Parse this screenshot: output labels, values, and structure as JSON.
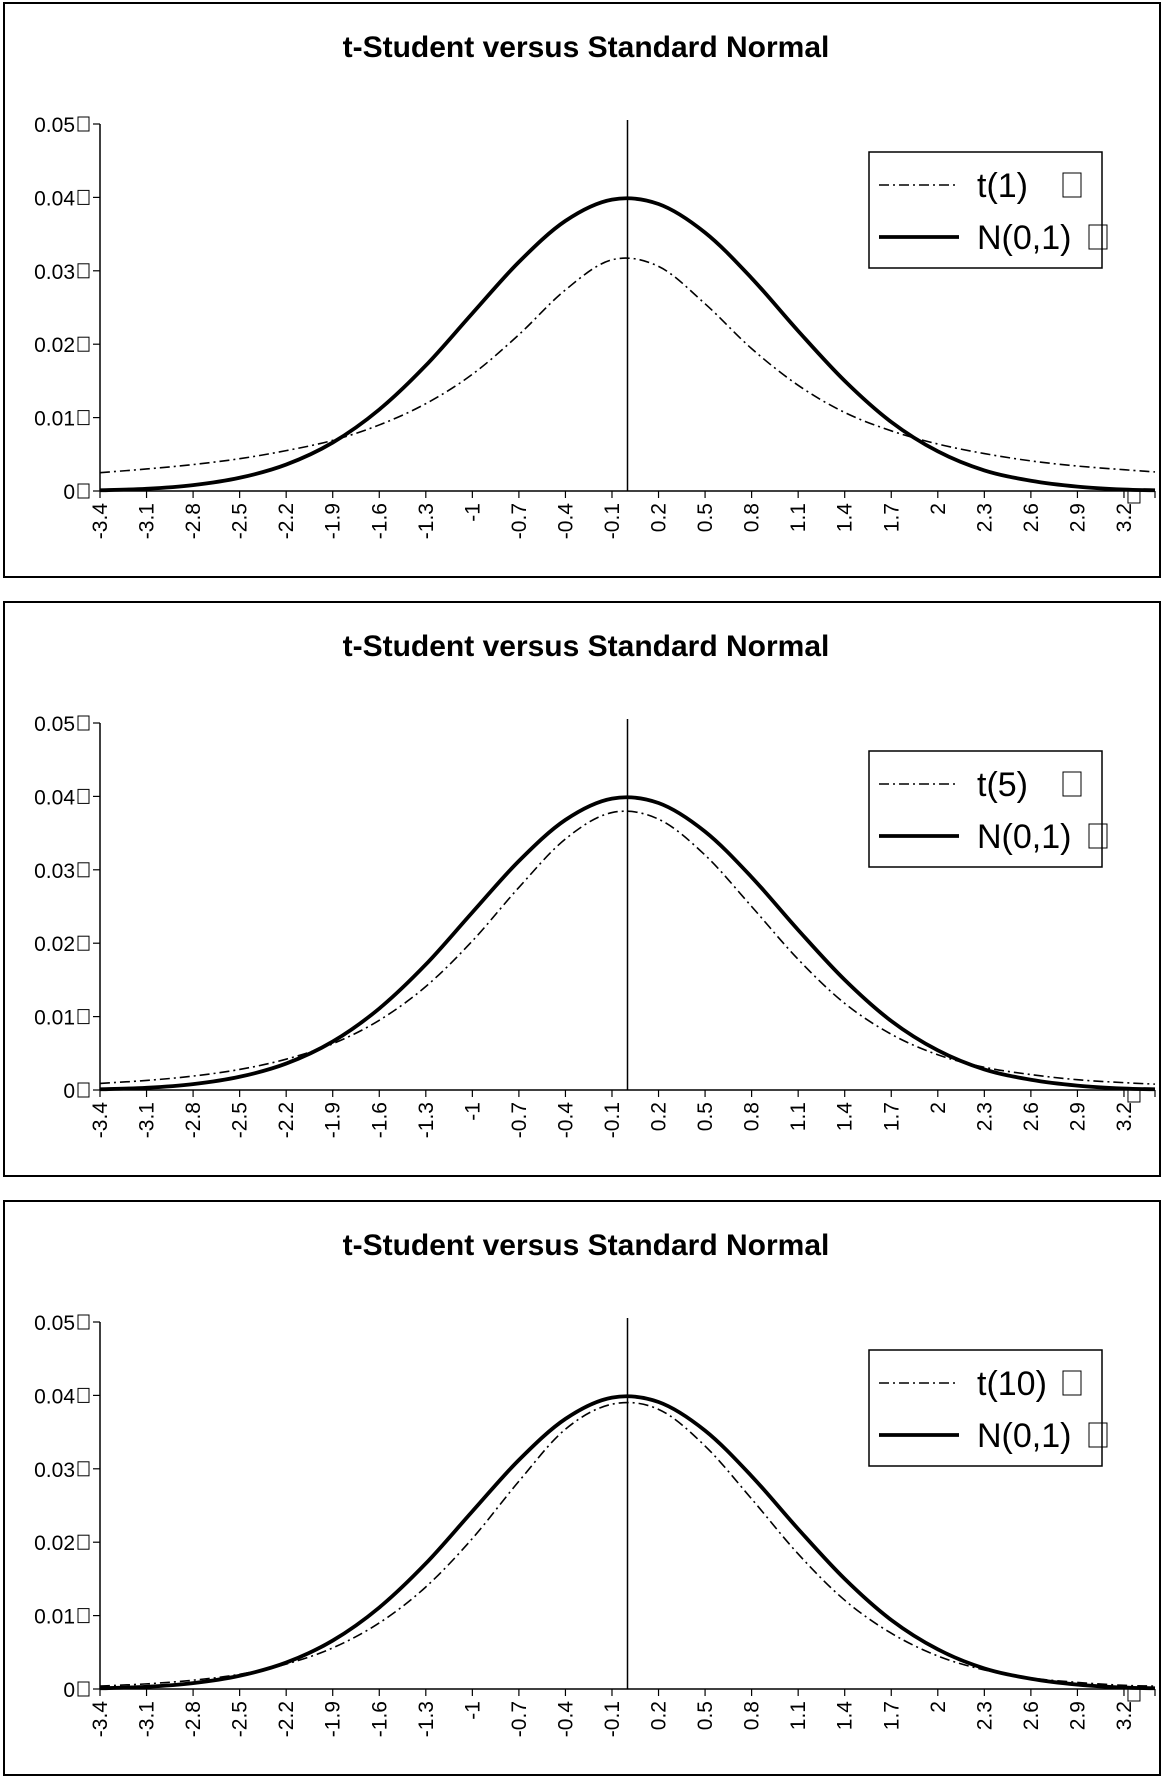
{
  "chart_data": [
    {
      "type": "line",
      "title": "t-Student versus Standard Normal",
      "xlabel": "",
      "ylabel": "",
      "x_tick_labels": [
        "-3.4",
        "-3.1",
        "-2.8",
        "-2.5",
        "-2.2",
        "-1.9",
        "-1.6",
        "-1.3",
        "-1",
        "-0.7",
        "-0.4",
        "-0.1",
        "0.2",
        "0.5",
        "0.8",
        "1.1",
        "1.4",
        "1.7",
        "2",
        "2.3",
        "2.6",
        "2.9",
        "3.2"
      ],
      "y_tick_labels": [
        "0",
        "0.01",
        "0.02",
        "0.03",
        "0.04",
        "0.05"
      ],
      "xlim": [
        -3.4,
        3.4
      ],
      "ylim": [
        0,
        0.05
      ],
      "legend_position": "top-right",
      "grid": false,
      "series": [
        {
          "name": "t(1)",
          "style": "dash-dot",
          "x": [
            -3.4,
            -3.1,
            -2.8,
            -2.5,
            -2.2,
            -1.9,
            -1.6,
            -1.3,
            -1,
            -0.7,
            -0.4,
            -0.1,
            0.2,
            0.5,
            0.8,
            1.1,
            1.4,
            1.7,
            2,
            2.3,
            2.6,
            2.9,
            3.2,
            3.4
          ],
          "values": [
            0.0025,
            0.003,
            0.0036,
            0.0044,
            0.0055,
            0.0069,
            0.009,
            0.0119,
            0.0159,
            0.0213,
            0.0274,
            0.0315,
            0.0306,
            0.0255,
            0.0194,
            0.0144,
            0.0107,
            0.0082,
            0.0064,
            0.0051,
            0.0041,
            0.0034,
            0.0029,
            0.0026
          ]
        },
        {
          "name": "N(0,1)",
          "style": "solid",
          "x": [
            -3.4,
            -3.1,
            -2.8,
            -2.5,
            -2.2,
            -1.9,
            -1.6,
            -1.3,
            -1,
            -0.7,
            -0.4,
            -0.1,
            0.2,
            0.5,
            0.8,
            1.1,
            1.4,
            1.7,
            2,
            2.3,
            2.6,
            2.9,
            3.2,
            3.4
          ],
          "values": [
            0.0001,
            0.0003,
            0.0008,
            0.0018,
            0.0036,
            0.0066,
            0.0111,
            0.0171,
            0.0242,
            0.0312,
            0.0368,
            0.0397,
            0.0391,
            0.0352,
            0.029,
            0.0218,
            0.015,
            0.0094,
            0.0054,
            0.0028,
            0.0014,
            0.0006,
            0.0002,
            0.0001
          ]
        }
      ],
      "colors": {
        "line": "#000000",
        "background": "#ffffff"
      }
    },
    {
      "type": "line",
      "title": "t-Student versus Standard Normal",
      "xlabel": "",
      "ylabel": "",
      "x_tick_labels": [
        "-3.4",
        "-3.1",
        "-2.8",
        "-2.5",
        "-2.2",
        "-1.9",
        "-1.6",
        "-1.3",
        "-1",
        "-0.7",
        "-0.4",
        "-0.1",
        "0.2",
        "0.5",
        "0.8",
        "1.1",
        "1.4",
        "1.7",
        "2",
        "2.3",
        "2.6",
        "2.9",
        "3.2"
      ],
      "y_tick_labels": [
        "0",
        "0.01",
        "0.02",
        "0.03",
        "0.04",
        "0.05"
      ],
      "xlim": [
        -3.4,
        3.4
      ],
      "ylim": [
        0,
        0.05
      ],
      "legend_position": "top-right",
      "grid": false,
      "series": [
        {
          "name": "t(5)",
          "style": "dash-dot",
          "x": [
            -3.4,
            -3.1,
            -2.8,
            -2.5,
            -2.2,
            -1.9,
            -1.6,
            -1.3,
            -1,
            -0.7,
            -0.4,
            -0.1,
            0.2,
            0.5,
            0.8,
            1.1,
            1.4,
            1.7,
            2,
            2.3,
            2.6,
            2.9,
            3.2,
            3.4
          ],
          "values": [
            0.0009,
            0.0013,
            0.0019,
            0.0028,
            0.0042,
            0.0063,
            0.0095,
            0.0141,
            0.0203,
            0.0276,
            0.0342,
            0.0378,
            0.0369,
            0.032,
            0.025,
            0.0178,
            0.0118,
            0.0076,
            0.0048,
            0.0031,
            0.0021,
            0.0014,
            0.001,
            0.0008
          ]
        },
        {
          "name": "N(0,1)",
          "style": "solid",
          "x": [
            -3.4,
            -3.1,
            -2.8,
            -2.5,
            -2.2,
            -1.9,
            -1.6,
            -1.3,
            -1,
            -0.7,
            -0.4,
            -0.1,
            0.2,
            0.5,
            0.8,
            1.1,
            1.4,
            1.7,
            2,
            2.3,
            2.6,
            2.9,
            3.2,
            3.4
          ],
          "values": [
            0.0001,
            0.0003,
            0.0008,
            0.0018,
            0.0036,
            0.0066,
            0.0111,
            0.0171,
            0.0242,
            0.0312,
            0.0368,
            0.0397,
            0.0391,
            0.0352,
            0.029,
            0.0218,
            0.015,
            0.0094,
            0.0054,
            0.0028,
            0.0014,
            0.0006,
            0.0002,
            0.0001
          ]
        }
      ],
      "colors": {
        "line": "#000000",
        "background": "#ffffff"
      }
    },
    {
      "type": "line",
      "title": "t-Student versus Standard Normal",
      "xlabel": "",
      "ylabel": "",
      "x_tick_labels": [
        "-3.4",
        "-3.1",
        "-2.8",
        "-2.5",
        "-2.2",
        "-1.9",
        "-1.6",
        "-1.3",
        "-1",
        "-0.7",
        "-0.4",
        "-0.1",
        "0.2",
        "0.5",
        "0.8",
        "1.1",
        "1.4",
        "1.7",
        "2",
        "2.3",
        "2.6",
        "2.9",
        "3.2"
      ],
      "y_tick_labels": [
        "0",
        "0.01",
        "0.02",
        "0.03",
        "0.04",
        "0.05"
      ],
      "xlim": [
        -3.4,
        3.4
      ],
      "ylim": [
        0,
        0.05
      ],
      "legend_position": "top-right",
      "grid": false,
      "series": [
        {
          "name": "t(10)",
          "style": "dash-dot",
          "x": [
            -3.4,
            -3.1,
            -2.8,
            -2.5,
            -2.2,
            -1.9,
            -1.6,
            -1.3,
            -1,
            -0.7,
            -0.4,
            -0.1,
            0.2,
            0.5,
            0.8,
            1.1,
            1.4,
            1.7,
            2,
            2.3,
            2.6,
            2.9,
            3.2,
            3.4
          ],
          "values": [
            0.0004,
            0.0007,
            0.0012,
            0.002,
            0.0034,
            0.0056,
            0.009,
            0.0139,
            0.0205,
            0.0283,
            0.0354,
            0.0388,
            0.0381,
            0.0331,
            0.0259,
            0.0184,
            0.0121,
            0.0076,
            0.0045,
            0.0026,
            0.0015,
            0.0009,
            0.0005,
            0.0004
          ]
        },
        {
          "name": "N(0,1)",
          "style": "solid",
          "x": [
            -3.4,
            -3.1,
            -2.8,
            -2.5,
            -2.2,
            -1.9,
            -1.6,
            -1.3,
            -1,
            -0.7,
            -0.4,
            -0.1,
            0.2,
            0.5,
            0.8,
            1.1,
            1.4,
            1.7,
            2,
            2.3,
            2.6,
            2.9,
            3.2,
            3.4
          ],
          "values": [
            0.0001,
            0.0003,
            0.0008,
            0.0018,
            0.0036,
            0.0066,
            0.0111,
            0.0171,
            0.0242,
            0.0312,
            0.0368,
            0.0397,
            0.0391,
            0.0352,
            0.029,
            0.0218,
            0.015,
            0.0094,
            0.0054,
            0.0028,
            0.0014,
            0.0006,
            0.0002,
            0.0001
          ]
        }
      ],
      "colors": {
        "line": "#000000",
        "background": "#ffffff"
      }
    }
  ]
}
